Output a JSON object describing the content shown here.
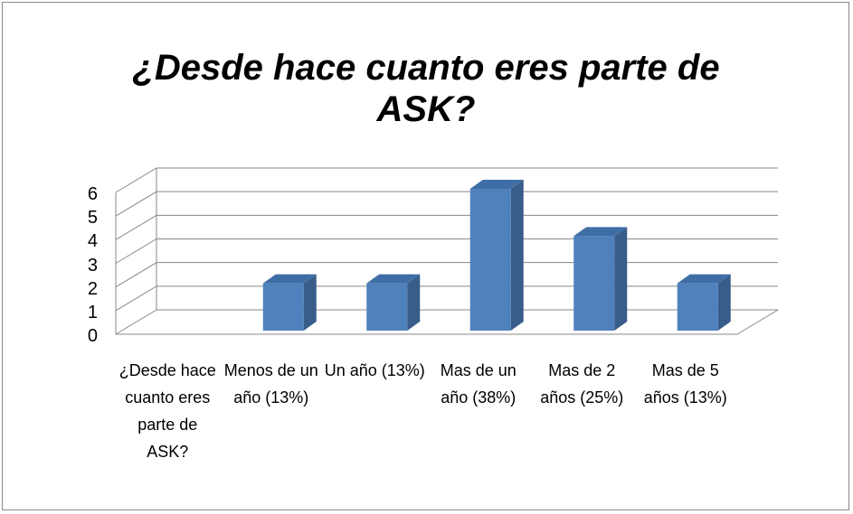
{
  "chart_data": {
    "type": "bar3d",
    "title": "¿Desde hace cuanto eres parte de ASK?",
    "categories": [
      "¿Desde hace cuanto eres parte de ASK?",
      "Menos de un año (13%)",
      "Un año (13%)",
      "Mas de un año (38%)",
      "Mas de 2 años (25%)",
      "Mas de 5 años (13%)"
    ],
    "values": [
      null,
      2,
      2,
      6,
      4,
      2
    ],
    "color": "#4f81bd",
    "ylim": [
      0,
      6
    ],
    "yticks": [
      0,
      1,
      2,
      3,
      4,
      5,
      6
    ],
    "grid": true
  }
}
